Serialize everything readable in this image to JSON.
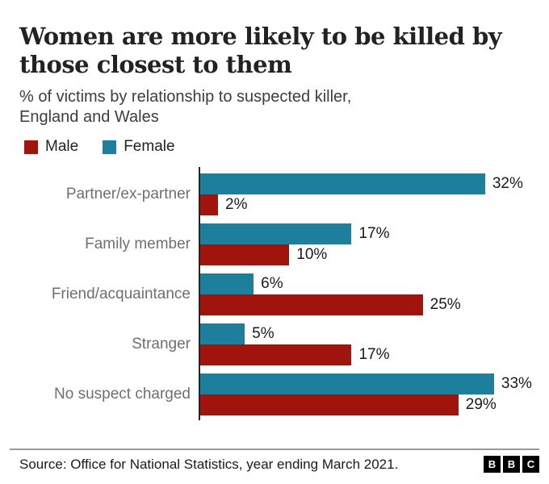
{
  "chart_data": {
    "type": "bar",
    "orientation": "horizontal",
    "title": "Women are more likely to be killed by those closest to them",
    "title_lines": [
      "Women are more likely to be killed by",
      "those closest to them"
    ],
    "subtitle": "% of victims by relationship to suspected killer, England and Wales",
    "subtitle_lines": [
      "% of victims by relationship to suspected killer,",
      "England and Wales"
    ],
    "categories": [
      "Partner/ex-partner",
      "Family member",
      "Friend/acquaintance",
      "Stranger",
      "No suspect charged"
    ],
    "series": [
      {
        "name": "Male",
        "color": "#a1140e",
        "values": [
          2,
          10,
          25,
          17,
          29
        ]
      },
      {
        "name": "Female",
        "color": "#1d7f9c",
        "values": [
          32,
          17,
          6,
          5,
          33
        ]
      }
    ],
    "row_order": [
      "Female",
      "Male"
    ],
    "value_suffix": "%",
    "xlim": [
      0,
      37
    ],
    "grid": false,
    "data_labels": true,
    "legend_position": "top-left",
    "colors": {
      "male": "#a1140e",
      "female": "#1d7f9c",
      "axis": "#252525",
      "category_label": "#6f6f6f",
      "value_label": "#1a1a1a",
      "title": "#222222",
      "subtitle": "#3d3d3d"
    }
  },
  "footer": {
    "source": "Source: Office for National Statistics, year ending March 2021.",
    "logo_letters": [
      "B",
      "B",
      "C"
    ]
  }
}
